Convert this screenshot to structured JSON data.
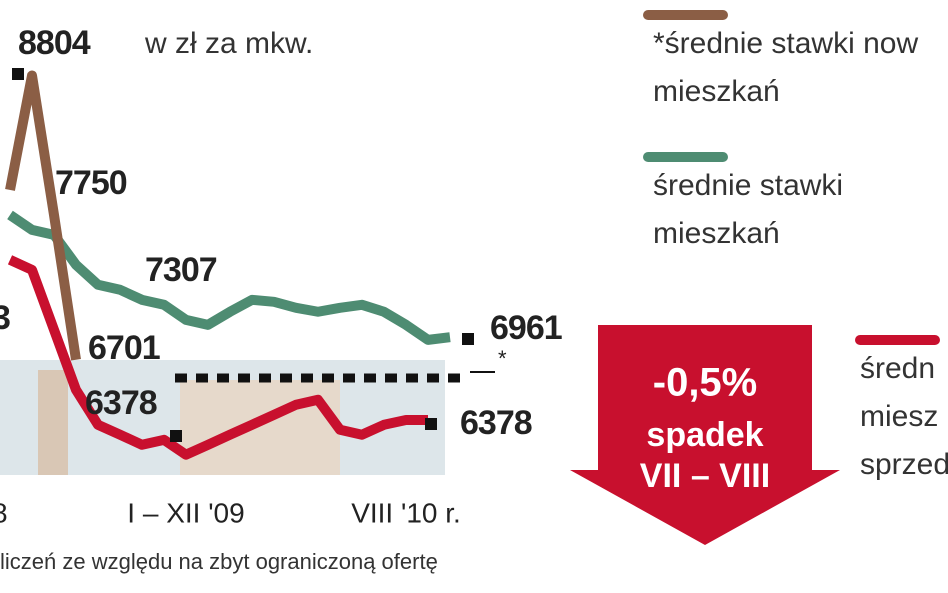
{
  "chart_data": {
    "type": "line",
    "ylabel": "w zł za mkw.",
    "categories": [
      "8",
      null,
      null,
      null,
      null,
      null,
      null,
      null,
      "I – XII '09",
      null,
      null,
      null,
      null,
      null,
      null,
      null,
      null,
      null,
      "VIII '10 r.",
      null,
      null
    ],
    "ylim": [
      5955,
      9336
    ],
    "series": [
      {
        "name": [
          "*średnie stawki now",
          "mieszkań"
        ],
        "color": "#8b5e45",
        "values": [
          7998,
          8804,
          7822,
          6802,
          null,
          null,
          null,
          null,
          null,
          null,
          null,
          null,
          null,
          null,
          null,
          null,
          null,
          null,
          null,
          null,
          null
        ]
      },
      {
        "name": [
          "średnie stawki",
          "mieszkań"
        ],
        "color": "#4e8c72",
        "values": [
          7822,
          7717,
          7682,
          7471,
          7330,
          7295,
          7224,
          7189,
          7083,
          7048,
          7140,
          7224,
          7210,
          7168,
          7140,
          7168,
          7189,
          7140,
          7048,
          6942,
          6961
        ]
      },
      {
        "name": [
          "średn",
          "miesz",
          "sprzed"
        ],
        "color": "#c8102e",
        "values": [
          7506,
          7435,
          7013,
          6590,
          6344,
          6274,
          6203,
          6238,
          6133,
          6203,
          6274,
          6344,
          6414,
          6485,
          6520,
          6309,
          6274,
          6344,
          6378,
          6378,
          null
        ]
      }
    ],
    "annotations": [
      "7750",
      "7307",
      "6701",
      "6378",
      "3"
    ],
    "badge": [
      "-0,5%",
      "spadek",
      "VII – VIII"
    ],
    "footnote": "liczeń ze względu na zbyt ograniczoną ofertę"
  }
}
